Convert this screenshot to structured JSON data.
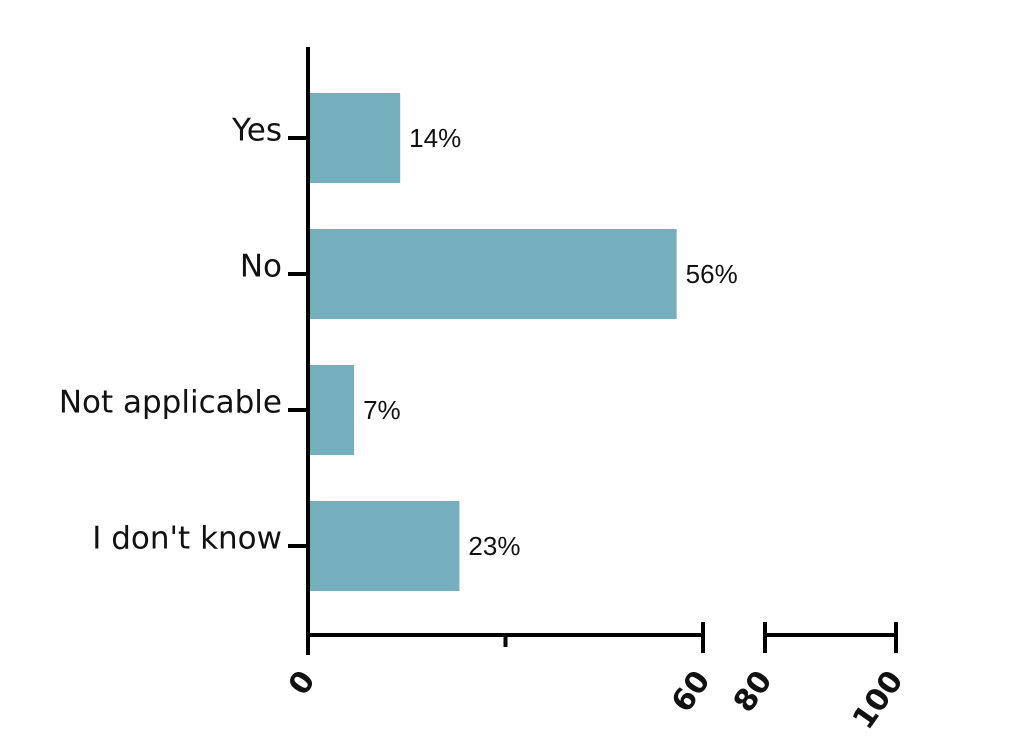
{
  "chart_data": {
    "type": "bar",
    "orientation": "horizontal",
    "categories": [
      "Yes",
      "No",
      "Not applicable",
      "I don't know"
    ],
    "values": [
      14,
      56,
      7,
      23
    ],
    "value_labels": [
      "14%",
      "56%",
      "7%",
      "23%"
    ],
    "color": "#75afbd",
    "xlim": [
      0,
      100
    ],
    "x_break": [
      60,
      80
    ],
    "xticks": [
      0,
      60,
      80,
      100
    ],
    "xminorticks": [
      30
    ]
  }
}
